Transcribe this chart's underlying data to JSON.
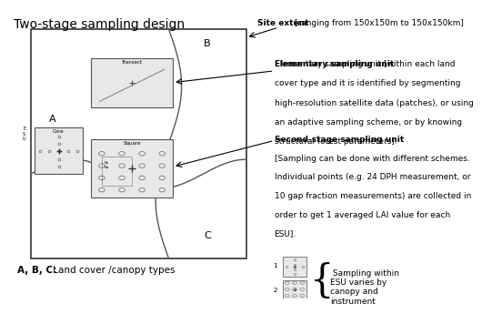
{
  "title": "Two-stage sampling design",
  "bg_color": "#ffffff",
  "text_color": "#000000",
  "site_extent_label": "Site extent",
  "site_extent_text": " [ranging from 150x150m to 150x150km]",
  "esu_label": "Elementary sampling unit",
  "esu_text": "[within each land\ncover type and it is identified by segmenting\nhigh-resolution satellite data (patches), or using\nan adaptive sampling scheme, or by knowing\nstructural forest parameters].",
  "ssu_label": "Second-stage sampling unit",
  "ssu_text": "[Sampling can be done with different schemes.\nIndividual points (e.g. 24 DPH measurement, or\n10 gap fraction measurements) are collected in\norder to get 1 averaged LAI value for each\nESU].",
  "abc_label": "A, B, C:",
  "abc_text": " Land cover /canopy types",
  "sampling_text": " Sampling within\nESU varies by\ncanopy and\ninstrument",
  "light_gray": "#e8e8e8"
}
